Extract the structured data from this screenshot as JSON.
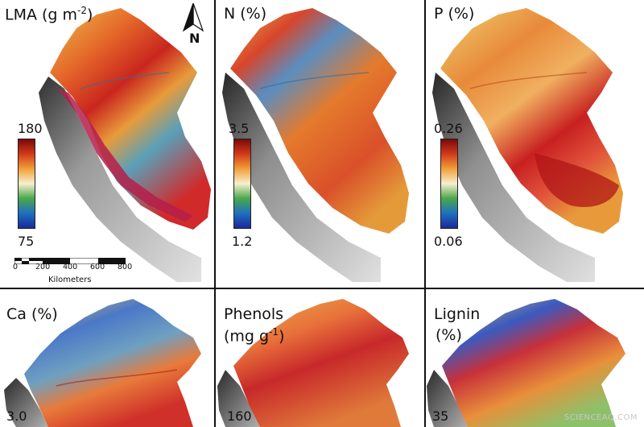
{
  "panels": [
    {
      "title_main": "LMA (g m",
      "title_sup": "-2",
      "title_end": ")",
      "cb_max": "180",
      "cb_min": "75"
    },
    {
      "title_main": "N (%)",
      "cb_max": "3.5",
      "cb_min": "1.2"
    },
    {
      "title_main": "P (%)",
      "cb_max": "0.26",
      "cb_min": "0.06"
    },
    {
      "title_main": "Ca (%)",
      "cb_max": "3.0"
    },
    {
      "title_main": "Phenols",
      "title_line2_main": "(mg g",
      "title_line2_sup": "-1",
      "title_line2_end": ")",
      "cb_max": "160"
    },
    {
      "title_main": "Lignin",
      "title_line2_main": "(%)",
      "cb_max": "35"
    }
  ],
  "scale": {
    "ticks": [
      "0",
      "200",
      "400",
      "600",
      "800"
    ],
    "unit": "Kilometers"
  },
  "north": {
    "label": "N"
  },
  "watermark": "SCIENCEAQ.COM",
  "colors": {
    "high": "#8b0000",
    "mid": "#f5f0d0",
    "green": "#3aa03a",
    "low": "#1f3ea8",
    "relief": "#b8b8b8"
  }
}
